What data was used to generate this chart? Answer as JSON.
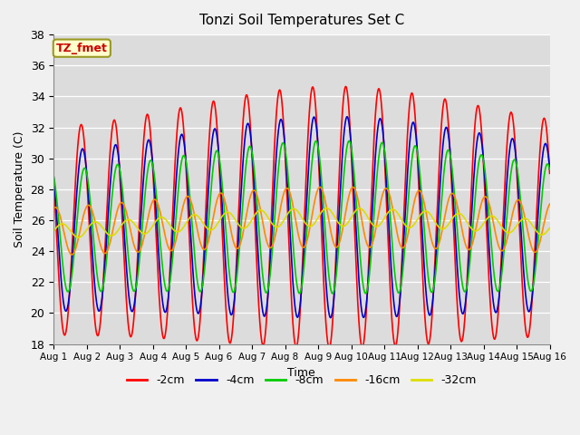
{
  "title": "Tonzi Soil Temperatures Set C",
  "xlabel": "Time",
  "ylabel": "Soil Temperature (C)",
  "ylim": [
    18,
    38
  ],
  "yticks": [
    18,
    20,
    22,
    24,
    26,
    28,
    30,
    32,
    34,
    36,
    38
  ],
  "fig_bg_color": "#f0f0f0",
  "plot_bg_color": "#dcdcdc",
  "line_colors": {
    "-2cm": "#ff0000",
    "-4cm": "#0000cc",
    "-8cm": "#00cc00",
    "-16cm": "#ff8800",
    "-32cm": "#dddd00"
  },
  "annotation_text": "TZ_fmet",
  "annotation_bg": "#ffffcc",
  "annotation_border": "#999922",
  "n_days": 15,
  "points_per_day": 144,
  "mean_base": 25.0,
  "amplitudes": {
    "-2cm": 6.5,
    "-4cm": 5.0,
    "-8cm": 3.8,
    "-16cm": 1.5,
    "-32cm": 0.45
  },
  "phase_lags_days": {
    "-2cm": 0.0,
    "-4cm": 0.04,
    "-8cm": 0.1,
    "-16cm": 0.22,
    "-32cm": 0.42
  },
  "mean_trend": {
    "peak_day": 8.5,
    "peak_add": 1.2,
    "sigma": 5.0
  },
  "amplitude_grow": {
    "peak_day": 8.5,
    "factor": 0.3,
    "sigma": 4.0
  }
}
